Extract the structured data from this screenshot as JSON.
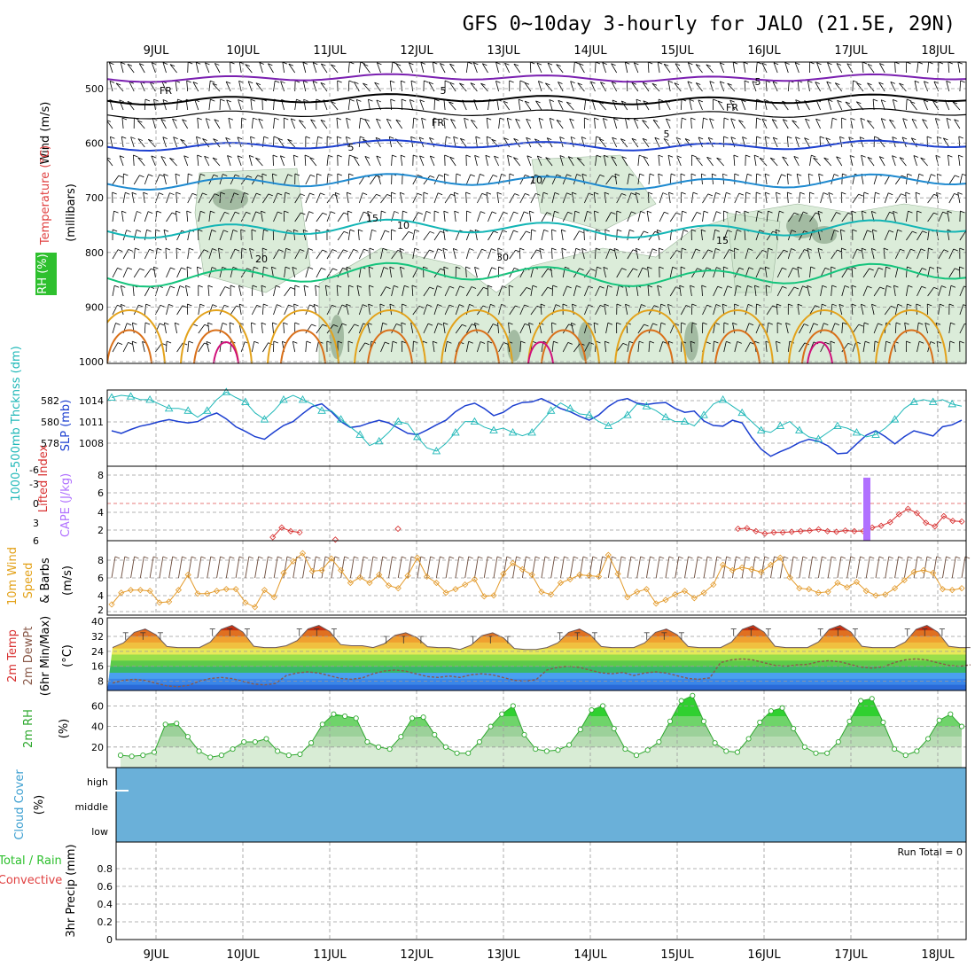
{
  "title": "GFS 0~10day 3-hourly for JALO (21.5E, 29N)",
  "dates": [
    "9JUL",
    "10JUL",
    "11JUL",
    "12JUL",
    "13JUL",
    "14JUL",
    "15JUL",
    "16JUL",
    "17JUL",
    "18JUL"
  ],
  "colors": {
    "purple": "#7a1fb0",
    "black": "#000000",
    "blue": "#1c3fd0",
    "lightblue": "#1e8ad0",
    "teal": "#12b5b5",
    "green": "#14c47c",
    "orange": "#e3a21a",
    "darkorange": "#d9701a",
    "magenta": "#d0107a",
    "rh_fill": "#cfe6cc",
    "rh_dark": "#7d9b7d",
    "slp": "#1c3fd0",
    "thick": "#20b8b8",
    "li": "#d83030",
    "cape": "#b070ff",
    "wind": "#e39a2a",
    "dew": "#8a5a4a",
    "rh2m": "#2ea82e",
    "cloud": "#6ab0d9"
  },
  "panels": {
    "upper": {
      "ylabel_wind": "Wind (m/s)",
      "ylabel_temp": "Temperature (°C)",
      "ylabel_pressure": "(millibars)",
      "rh_label": "RH (%)",
      "yticks": [
        "500",
        "600",
        "700",
        "800",
        "900",
        "1000"
      ],
      "contour_labels": [
        "5",
        "5",
        "FR",
        "FR",
        "FR",
        "5",
        "5",
        "10",
        "15",
        "15",
        "20",
        "10",
        "30"
      ]
    },
    "slp": {
      "ylabel_thick": "1000-500mb Thcknss (dm)",
      "ylabel_slp": "SLP (mb)",
      "left_ticks": [
        "582",
        "580",
        "578"
      ],
      "right_ticks": [
        "1014",
        "1011",
        "1008"
      ]
    },
    "li": {
      "ylabel_li": "Lifted Index",
      "ylabel_cape": "CAPE (J/kg)",
      "left_ticks": [
        "-6",
        "-3",
        "0",
        "3",
        "6"
      ],
      "right_ticks": [
        "8",
        "6",
        "4",
        "2"
      ]
    },
    "wind10": {
      "ylabel_a": "10m Wind",
      "ylabel_b": "Speed",
      "ylabel_c": "& Barbs",
      "ylabel_unit": "(m/s)",
      "yticks": [
        "8",
        "6",
        "4",
        "2"
      ]
    },
    "temp2m": {
      "ylabel_a": "2m Temp",
      "ylabel_b": "2m DewPt",
      "ylabel_c": "(6hr Min/Max)",
      "ylabel_unit": "(°C)",
      "yticks": [
        "40",
        "32",
        "24",
        "16",
        "8"
      ]
    },
    "rh2m": {
      "ylabel": "2m RH",
      "ylabel_unit": "(%)",
      "yticks": [
        "60",
        "40",
        "20"
      ]
    },
    "cloud": {
      "ylabel": "Cloud Cover",
      "ylabel_unit": "(%)",
      "levels": [
        "high",
        "middle",
        "low"
      ]
    },
    "precip": {
      "ylabel_a": "Total / Rain",
      "ylabel_b": "Convective",
      "ylabel_c": "3hr Precip (mm)",
      "yticks": [
        "0.8",
        "0.6",
        "0.4",
        "0.2",
        "0"
      ],
      "run_total": "Run Total = 0"
    }
  },
  "chart_data": [
    {
      "type": "line",
      "name": "SLP",
      "x_dates": "9JUL 00Z + 3h steps",
      "ylim": [
        1005,
        1015
      ],
      "values": [
        1009.6,
        1009.2,
        1009.8,
        1010.3,
        1010.6,
        1011.0,
        1011.3,
        1011.0,
        1010.8,
        1011.0,
        1011.8,
        1012.3,
        1011.4,
        1010.2,
        1009.5,
        1008.7,
        1008.3,
        1009.4,
        1010.4,
        1011.0,
        1012.2,
        1013.3,
        1013.7,
        1012.5,
        1011.0,
        1010.1,
        1010.3,
        1010.8,
        1011.2,
        1010.8,
        1010.0,
        1009.2,
        1009.0,
        1009.7,
        1010.5,
        1011.2,
        1012.5,
        1013.4,
        1013.8,
        1013.0,
        1011.9,
        1012.4,
        1013.4,
        1013.9,
        1014.0,
        1014.5,
        1013.8,
        1013.0,
        1012.5,
        1011.8,
        1011.2,
        1012.0,
        1013.3,
        1014.2,
        1014.5,
        1013.8,
        1013.6,
        1013.8,
        1013.9,
        1013.0,
        1012.4,
        1012.6,
        1011.1,
        1010.4,
        1010.3,
        1011.2,
        1010.8,
        1008.6,
        1006.8,
        1005.7,
        1006.4,
        1007.0,
        1007.8,
        1008.3,
        1008.0,
        1007.3,
        1006.1,
        1006.2,
        1007.6,
        1008.9,
        1009.6,
        1008.7,
        1007.6,
        1008.7,
        1009.6,
        1009.2,
        1008.8,
        1010.2,
        1010.5,
        1011.2
      ]
    },
    {
      "type": "line",
      "name": "Thickness",
      "ylim": [
        577,
        583
      ],
      "values": [
        582.8,
        583.0,
        582.9,
        582.6,
        582.6,
        582.2,
        581.8,
        581.8,
        581.6,
        581.0,
        581.6,
        582.6,
        583.3,
        582.8,
        582.4,
        581.4,
        580.8,
        581.6,
        582.6,
        583.0,
        582.6,
        582.2,
        581.6,
        581.6,
        580.8,
        580.1,
        579.4,
        578.4,
        578.8,
        579.6,
        580.6,
        580.4,
        579.2,
        578.2,
        577.9,
        578.6,
        579.6,
        580.6,
        580.6,
        580.1,
        579.8,
        580.0,
        579.6,
        579.3,
        579.6,
        580.6,
        581.6,
        582.3,
        581.8,
        581.3,
        581.2,
        580.6,
        580.2,
        580.6,
        581.2,
        582.2,
        582.0,
        581.6,
        581.0,
        580.6,
        580.6,
        580.2,
        581.2,
        582.2,
        582.6,
        582.0,
        581.4,
        580.6,
        579.8,
        579.6,
        580.2,
        580.6,
        579.8,
        579.2,
        579.0,
        579.6,
        580.2,
        580.0,
        579.6,
        579.2,
        579.4,
        580.0,
        580.8,
        581.8,
        582.4,
        582.6,
        582.4,
        582.6,
        582.2,
        582.0
      ]
    },
    {
      "type": "line",
      "name": "Lifted Index",
      "ylim": [
        6,
        -6
      ],
      "values": [
        null,
        null,
        null,
        null,
        null,
        null,
        null,
        null,
        null,
        null,
        null,
        null,
        null,
        null,
        null,
        null,
        null,
        null,
        5.6,
        4.0,
        4.6,
        4.8,
        null,
        null,
        null,
        6.0,
        null,
        null,
        null,
        null,
        null,
        null,
        4.2,
        null,
        null,
        null,
        null,
        null,
        null,
        null,
        null,
        null,
        null,
        null,
        null,
        null,
        null,
        null,
        null,
        null,
        null,
        null,
        null,
        null,
        null,
        null,
        null,
        null,
        null,
        null,
        null,
        null,
        null,
        null,
        null,
        null,
        null,
        null,
        null,
        null,
        4.2,
        4.1,
        4.6,
        5.0,
        4.8,
        4.8,
        4.7,
        4.6,
        4.5,
        4.3,
        4.6,
        4.7,
        4.5,
        4.6,
        4.6,
        4.0,
        3.7,
        3.1,
        1.8,
        0.9,
        1.6,
        3.2,
        3.8,
        2.1,
        2.9,
        3.0
      ]
    },
    {
      "type": "bar",
      "name": "CAPE",
      "ylim": [
        0,
        9
      ],
      "values_nonzero": [
        {
          "date": "17JUL",
          "value": 8.0
        }
      ]
    },
    {
      "type": "line",
      "name": "10m Wind Speed",
      "ylim": [
        2,
        9.5
      ],
      "values": [
        2.8,
        4.1,
        4.4,
        4.4,
        4.3,
        3.0,
        3.1,
        4.4,
        6.1,
        4.0,
        4.0,
        4.3,
        4.5,
        4.5,
        3.0,
        2.5,
        4.4,
        3.6,
        6.3,
        7.6,
        8.5,
        6.5,
        6.6,
        7.9,
        6.6,
        5.2,
        5.8,
        5.2,
        6.1,
        4.9,
        4.6,
        6.0,
        8.0,
        5.9,
        5.2,
        4.1,
        4.5,
        5.0,
        5.6,
        3.7,
        3.8,
        6.2,
        7.4,
        6.7,
        6.1,
        4.2,
        3.9,
        5.2,
        5.6,
        6.1,
        6.0,
        5.9,
        8.3,
        6.2,
        3.6,
        4.2,
        4.5,
        2.9,
        3.3,
        3.9,
        4.3,
        3.5,
        4.1,
        5.0,
        7.2,
        6.6,
        6.9,
        6.7,
        6.4,
        7.2,
        8.0,
        5.8,
        4.6,
        4.5,
        4.1,
        4.2,
        5.2,
        4.7,
        5.3,
        4.3,
        3.8,
        3.9,
        4.6,
        5.5,
        6.4,
        6.6,
        6.3,
        4.5,
        4.4,
        4.6
      ]
    },
    {
      "type": "area",
      "name": "2m Temp / DewPt",
      "ylim": [
        3,
        42
      ],
      "temp_peaks": [
        36,
        38,
        38,
        34,
        34,
        36,
        36,
        38,
        38,
        38
      ],
      "temp_troughs": [
        26,
        26,
        27,
        26,
        25,
        26,
        26,
        26,
        26,
        26
      ],
      "dewpt_approx": [
        7,
        8,
        11,
        12,
        10,
        14,
        11,
        18,
        17,
        18
      ]
    },
    {
      "type": "area",
      "name": "2m RH",
      "ylim": [
        0,
        75
      ],
      "values": [
        12,
        11,
        12,
        15,
        42,
        43,
        30,
        16,
        10,
        12,
        18,
        25,
        25,
        28,
        16,
        12,
        13,
        24,
        42,
        52,
        50,
        48,
        25,
        20,
        18,
        30,
        48,
        49,
        32,
        20,
        14,
        14,
        25,
        40,
        52,
        60,
        32,
        18,
        16,
        17,
        22,
        37,
        56,
        60,
        38,
        18,
        12,
        17,
        25,
        45,
        65,
        70,
        45,
        24,
        16,
        15,
        28,
        44,
        55,
        58,
        38,
        20,
        14,
        14,
        25,
        45,
        65,
        67,
        44,
        18,
        12,
        16,
        28,
        46,
        52,
        40
      ]
    },
    {
      "type": "area",
      "name": "Cloud Cover",
      "values": [
        0
      ],
      "levels": [
        "high",
        "middle",
        "low"
      ]
    },
    {
      "type": "bar",
      "name": "3hr Precip",
      "ylim": [
        0,
        1.0
      ],
      "values": [
        0
      ]
    }
  ]
}
